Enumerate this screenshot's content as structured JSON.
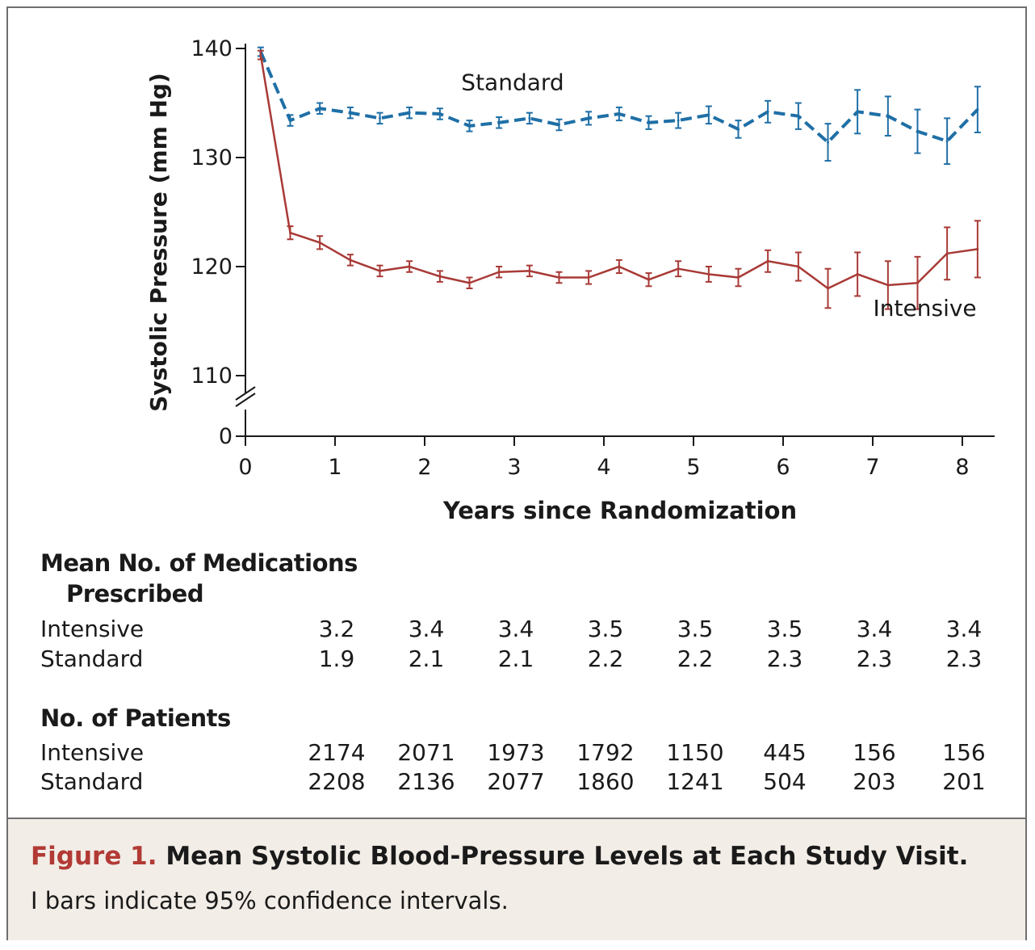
{
  "chart_data": {
    "type": "line",
    "ylabel": "Systolic Pressure (mm Hg)",
    "xlabel": "Years since Randomization",
    "xlim": [
      0,
      8.3
    ],
    "x_ticks": [
      0,
      1,
      2,
      3,
      4,
      5,
      6,
      7,
      8
    ],
    "y_ticks": [
      0,
      110,
      120,
      130,
      140
    ],
    "y_axis_break": true,
    "ylim": [
      110,
      140
    ],
    "grid": false,
    "x": [
      0.17,
      0.5,
      0.83,
      1.17,
      1.5,
      1.83,
      2.17,
      2.5,
      2.83,
      3.17,
      3.5,
      3.83,
      4.17,
      4.5,
      4.83,
      5.17,
      5.5,
      5.83,
      6.17,
      6.5,
      6.83,
      7.17,
      7.5,
      7.83,
      8.17
    ],
    "series": [
      {
        "name": "Standard",
        "color": "#1f6fa6",
        "line_style": "dashed",
        "values": [
          139.7,
          133.4,
          134.5,
          134.1,
          133.6,
          134.1,
          134.0,
          132.9,
          133.2,
          133.6,
          133.0,
          133.6,
          134.0,
          133.2,
          133.4,
          133.9,
          132.6,
          134.2,
          133.8,
          131.4,
          134.2,
          133.8,
          132.4,
          131.5,
          134.4
        ],
        "ci_half_width": [
          0.4,
          0.5,
          0.5,
          0.5,
          0.5,
          0.5,
          0.5,
          0.5,
          0.5,
          0.5,
          0.5,
          0.6,
          0.6,
          0.6,
          0.7,
          0.8,
          0.8,
          1.0,
          1.2,
          1.7,
          2.0,
          1.8,
          2.0,
          2.1,
          2.1
        ]
      },
      {
        "name": "Intensive",
        "color": "#a83a36",
        "line_style": "solid",
        "values": [
          139.4,
          123.1,
          122.2,
          120.6,
          119.6,
          120.0,
          119.1,
          118.5,
          119.5,
          119.6,
          119.0,
          119.0,
          120.0,
          118.8,
          119.8,
          119.3,
          119.0,
          120.5,
          120.0,
          118.0,
          119.3,
          118.3,
          118.5,
          121.2,
          121.6
        ],
        "ci_half_width": [
          0.4,
          0.6,
          0.6,
          0.5,
          0.5,
          0.5,
          0.5,
          0.5,
          0.5,
          0.5,
          0.5,
          0.6,
          0.6,
          0.6,
          0.7,
          0.7,
          0.8,
          1.0,
          1.3,
          1.8,
          2.0,
          2.2,
          2.4,
          2.4,
          2.6
        ]
      }
    ],
    "annotations": [
      {
        "text": "Standard",
        "x": 3.0,
        "y": 136.2
      },
      {
        "text": "Intensive",
        "x": 7.6,
        "y": 115.5
      }
    ]
  },
  "table": {
    "medications_title_line1": "Mean No. of Medications",
    "medications_title_line2": "Prescribed",
    "medications": {
      "intensive_label": "Intensive",
      "standard_label": "Standard",
      "intensive": [
        "3.2",
        "3.4",
        "3.4",
        "3.5",
        "3.5",
        "3.5",
        "3.4",
        "3.4"
      ],
      "standard": [
        "1.9",
        "2.1",
        "2.1",
        "2.2",
        "2.2",
        "2.3",
        "2.3",
        "2.3"
      ]
    },
    "patients_title": "No. of Patients",
    "patients": {
      "intensive_label": "Intensive",
      "standard_label": "Standard",
      "intensive": [
        "2174",
        "2071",
        "1973",
        "1792",
        "1150",
        "445",
        "156",
        "156"
      ],
      "standard": [
        "2208",
        "2136",
        "2077",
        "1860",
        "1241",
        "504",
        "203",
        "201"
      ]
    }
  },
  "caption": {
    "figure_label": "Figure 1.",
    "title": "Mean Systolic Blood-Pressure Levels at Each Study Visit.",
    "note": "I bars indicate 95% confidence intervals."
  }
}
